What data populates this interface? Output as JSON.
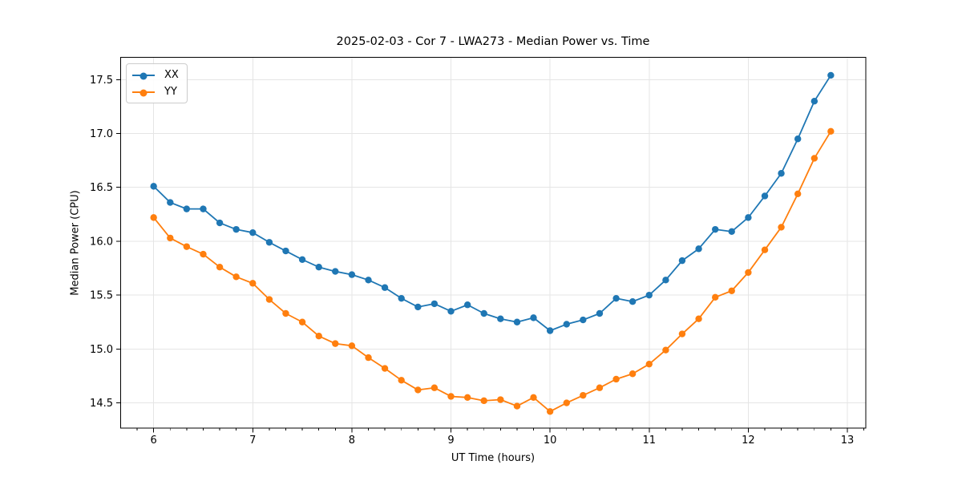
{
  "chart_data": {
    "type": "line",
    "title": "2025-02-03 - Cor 7 - LWA273 - Median Power vs. Time",
    "xlabel": "UT Time (hours)",
    "ylabel": "Median Power (CPU)",
    "xlim": [
      5.667,
      13.186
    ],
    "ylim": [
      14.266,
      17.707
    ],
    "grid": true,
    "legend_position": "upper-left",
    "x_major_ticks": [
      6,
      7,
      8,
      9,
      10,
      11,
      12,
      13
    ],
    "x_tick_labels": [
      "6",
      "7",
      "8",
      "9",
      "10",
      "11",
      "12",
      "13"
    ],
    "x_minor_step": 0.166667,
    "y_major_ticks": [
      14.5,
      15.0,
      15.5,
      16.0,
      16.5,
      17.0,
      17.5
    ],
    "y_tick_labels": [
      "14.5",
      "15.0",
      "15.5",
      "16.0",
      "16.5",
      "17.0",
      "17.5"
    ],
    "x": [
      6.0,
      6.167,
      6.333,
      6.5,
      6.667,
      6.833,
      7.0,
      7.167,
      7.333,
      7.5,
      7.667,
      7.833,
      8.0,
      8.167,
      8.333,
      8.5,
      8.667,
      8.833,
      9.0,
      9.167,
      9.333,
      9.5,
      9.667,
      9.833,
      10.0,
      10.167,
      10.333,
      10.5,
      10.667,
      10.833,
      11.0,
      11.167,
      11.333,
      11.5,
      11.667,
      11.833,
      12.0,
      12.167,
      12.333,
      12.5,
      12.667,
      12.833
    ],
    "series": [
      {
        "name": "XX",
        "color": "#1f77b4",
        "values": [
          16.51,
          16.36,
          16.3,
          16.3,
          16.17,
          16.11,
          16.08,
          15.99,
          15.91,
          15.83,
          15.76,
          15.72,
          15.69,
          15.64,
          15.57,
          15.47,
          15.39,
          15.42,
          15.35,
          15.41,
          15.33,
          15.28,
          15.25,
          15.29,
          15.17,
          15.23,
          15.27,
          15.33,
          15.47,
          15.44,
          15.5,
          15.64,
          15.82,
          15.93,
          16.11,
          16.09,
          16.22,
          16.42,
          16.63,
          16.95,
          17.3,
          17.54
        ]
      },
      {
        "name": "YY",
        "color": "#ff7f0e",
        "values": [
          16.22,
          16.03,
          15.95,
          15.88,
          15.76,
          15.67,
          15.61,
          15.46,
          15.33,
          15.25,
          15.12,
          15.05,
          15.03,
          14.92,
          14.82,
          14.71,
          14.62,
          14.64,
          14.56,
          14.55,
          14.52,
          14.53,
          14.47,
          14.55,
          14.42,
          14.5,
          14.57,
          14.64,
          14.72,
          14.77,
          14.86,
          14.99,
          15.14,
          15.28,
          15.48,
          15.54,
          15.71,
          15.92,
          16.13,
          16.44,
          16.77,
          17.02
        ]
      }
    ],
    "colors": {
      "grid": "#e5e5e5",
      "spine": "#000000",
      "tick": "#000000",
      "text": "#000000",
      "background": "#ffffff"
    }
  }
}
